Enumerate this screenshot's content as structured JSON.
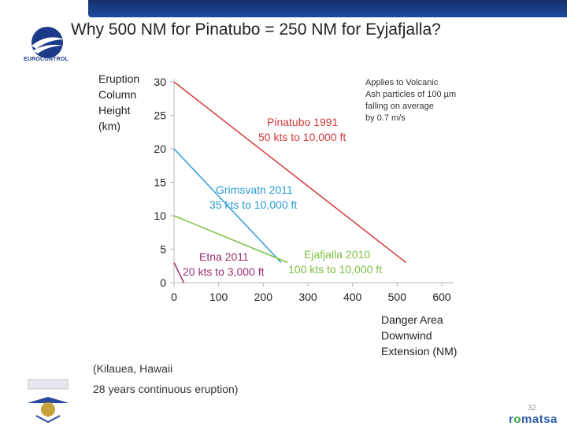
{
  "title": "Why 500 NM for Pinatubo = 250 NM for Eyjafjalla?",
  "logo": {
    "name": "EUROCONTROL"
  },
  "colors": {
    "red": "#d03a3a",
    "blue": "#2b9bd6",
    "green": "#7cc142",
    "purple": "#9b2f6e"
  },
  "chart_data": {
    "type": "line",
    "title": "",
    "ylabel_lines": [
      "Eruption",
      "Column",
      "Height",
      "(km)"
    ],
    "xlabel_lines": [
      "Danger Area",
      "Downwind",
      "Extension (NM)"
    ],
    "xlim": [
      0,
      600
    ],
    "ylim": [
      0,
      30
    ],
    "x_ticks": [
      0,
      100,
      200,
      300,
      400,
      500,
      600
    ],
    "y_ticks": [
      0,
      5,
      10,
      15,
      20,
      25,
      30
    ],
    "note_lines": [
      "Applies to Volcanic",
      "Ash particles of 100 µm",
      "falling on average",
      "by 0.7 m/s"
    ],
    "series": [
      {
        "name": "Pinatubo",
        "label_lines": [
          "Pinatubo 1991",
          "50 kts to 10,000 ft"
        ],
        "color": "#d03a3a",
        "x": [
          0,
          520
        ],
        "y": [
          30,
          3
        ]
      },
      {
        "name": "Grimsvatn",
        "label_lines": [
          "Grimsvatn 2011",
          "35 kts to 10,000 ft"
        ],
        "color": "#2b9bd6",
        "x": [
          0,
          240
        ],
        "y": [
          20,
          3
        ]
      },
      {
        "name": "Ejafjalla",
        "label_lines": [
          "Ejafjalla 2010",
          "100 kts to 10,000 ft"
        ],
        "color": "#7cc142",
        "x": [
          0,
          255
        ],
        "y": [
          10,
          3
        ]
      },
      {
        "name": "Etna",
        "label_lines": [
          "Etna 2011",
          "20 kts to 3,000 ft"
        ],
        "color": "#9b2f6e",
        "x": [
          0,
          22
        ],
        "y": [
          3,
          0
        ]
      }
    ]
  },
  "footnote": {
    "line1": "(Kilauea, Hawaii",
    "line2": "28 years continuous eruption)"
  },
  "page_number": "32",
  "brand": {
    "prefix": "r",
    "o": "o",
    "suffix": "matsa"
  }
}
